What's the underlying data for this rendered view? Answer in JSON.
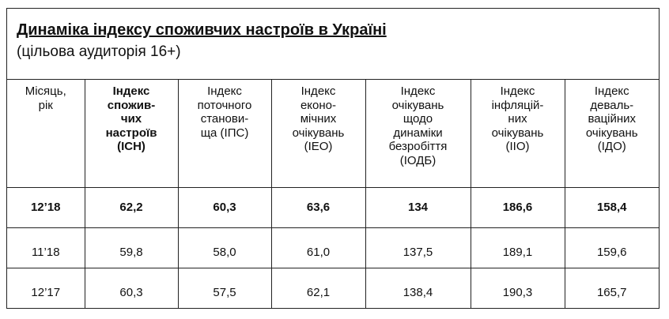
{
  "title": "Динаміка індексу споживчих настроїв в Україні",
  "subtitle": "(цільова аудиторія 16+)",
  "table": {
    "header": [
      [
        "Місяць,",
        "рік"
      ],
      [
        "Індекс",
        "спожив-",
        "чих",
        "настроїв",
        "(ICH)"
      ],
      [
        "Індекс",
        "поточного",
        "станови-",
        "ща (ІПС)"
      ],
      [
        "Індекс",
        "еконо-",
        "мічних",
        "очікувань",
        "(IEO)"
      ],
      [
        "Індекс",
        "очікувань",
        "щодо",
        "динаміки",
        "безробіття",
        "(ІОДБ)"
      ],
      [
        "Індекс",
        "інфляцій-",
        "них",
        "очікувань",
        "(ІІО)"
      ],
      [
        "Індекс",
        "деваль-",
        "ваційних",
        "очікувань",
        "(ІДО)"
      ]
    ],
    "rows": [
      [
        "12’18",
        "62,2",
        "60,3",
        "63,6",
        "134",
        "186,6",
        "158,4"
      ],
      [
        "11’18",
        "59,8",
        "58,0",
        "61,0",
        "137,5",
        "189,1",
        "159,6"
      ],
      [
        "12’17",
        "60,3",
        "57,5",
        "62,1",
        "138,4",
        "190,3",
        "165,7"
      ]
    ]
  }
}
